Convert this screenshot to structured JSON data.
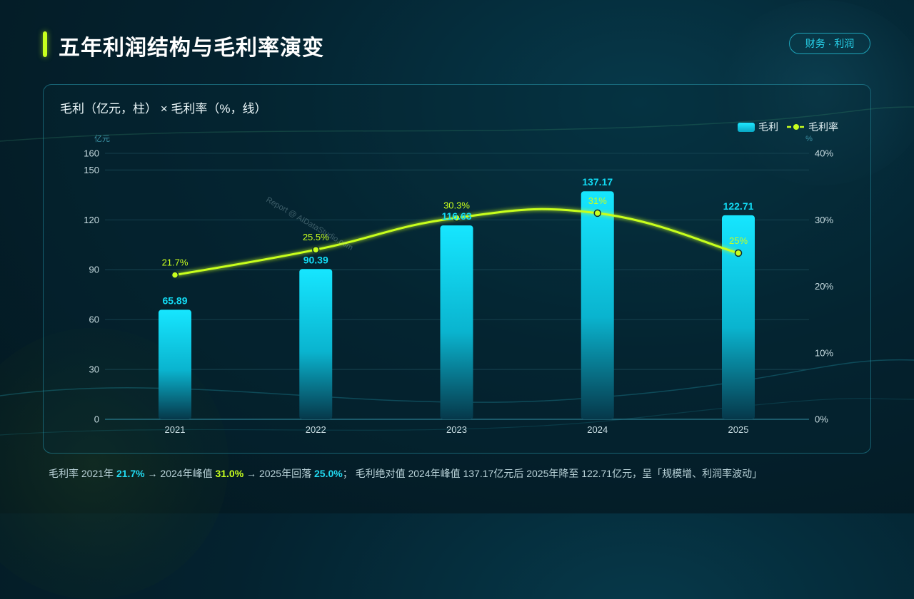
{
  "page": {
    "title": "五年利润结构与毛利率演变",
    "tag": "财务 · 利润"
  },
  "chart": {
    "heading": "毛利（亿元，柱） × 毛利率（%，线）",
    "legend_bar": "毛利",
    "legend_line": "毛利率",
    "left_unit": "亿元",
    "right_unit": "%",
    "watermark": "Report @ AIDataStudio.com"
  },
  "footer": {
    "p1": "毛利率 2021年 ",
    "v1": "21.7%",
    "p2": " → 2024年峰值 ",
    "v2": "31.0%",
    "p3": " → 2025年回落 ",
    "v3": "25.0%",
    "p4": "；  毛利绝对值 2024年峰值 137.17亿元后 2025年降至 122.71亿元，呈「规模增、利润率波动」"
  },
  "chart_data": {
    "type": "bar",
    "categories": [
      "2021",
      "2022",
      "2023",
      "2024",
      "2025"
    ],
    "series": [
      {
        "name": "毛利",
        "type": "bar",
        "axis": "left",
        "values": [
          65.89,
          90.39,
          116.63,
          137.17,
          122.71
        ],
        "labels": [
          "65.89",
          "90.39",
          "116.63",
          "137.17",
          "122.71"
        ]
      },
      {
        "name": "毛利率",
        "type": "line",
        "axis": "right",
        "values": [
          21.7,
          25.5,
          30.3,
          31.0,
          25.0
        ],
        "labels": [
          "21.7%",
          "25.5%",
          "30.3%",
          "31%",
          "25%"
        ]
      }
    ],
    "y_left": {
      "unit": "亿元",
      "ticks": [
        0,
        30,
        60,
        90,
        120,
        150,
        160
      ],
      "range": [
        0,
        160
      ]
    },
    "y_right": {
      "unit": "%",
      "ticks": [
        "0%",
        "10%",
        "20%",
        "30%",
        "40%"
      ],
      "range": [
        0,
        40
      ]
    },
    "grid": true,
    "legend_position": "top-right",
    "colors": {
      "bar": "#12dcf5",
      "line": "#c8ff1e",
      "axis_text": "#c9dde2",
      "grid": "#1a4a57"
    }
  }
}
